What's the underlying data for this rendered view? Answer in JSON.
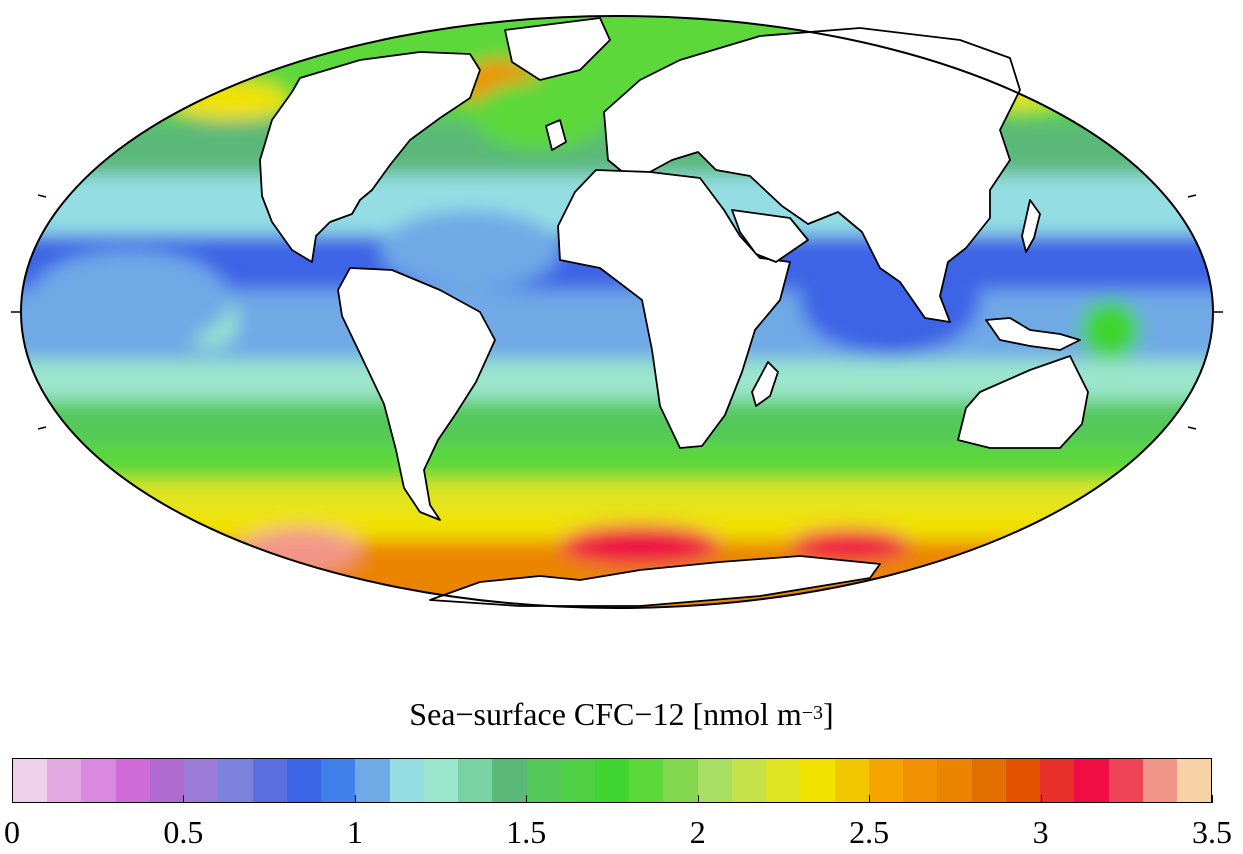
{
  "colorbar": {
    "label_prefix": "Sea−surface CFC−12 [nmol m",
    "label_exponent": "−3",
    "label_suffix": "]",
    "min": 0,
    "max": 3.5,
    "step": 0.1,
    "ticks": [
      "0",
      "0.5",
      "1",
      "1.5",
      "2",
      "2.5",
      "3",
      "3.5"
    ],
    "colors": [
      "#efcfe9",
      "#e2a9e3",
      "#d98ae0",
      "#cf6ad8",
      "#b06ad0",
      "#9b7ad8",
      "#7b82db",
      "#5a6ee0",
      "#3c64e6",
      "#3f80ea",
      "#6fa9e6",
      "#94dee3",
      "#9be6cc",
      "#78d2a2",
      "#5ab878",
      "#55c85a",
      "#4fd045",
      "#3fd42f",
      "#5cd83a",
      "#84d84f",
      "#a8df63",
      "#c6e24a",
      "#e0e423",
      "#f1e200",
      "#f3c700",
      "#f5a400",
      "#f19100",
      "#eb8500",
      "#e27000",
      "#e05200",
      "#e63029",
      "#ef0d44",
      "#ef4358",
      "#f3968a",
      "#f8d1a6"
    ]
  },
  "map": {
    "projection": "Mollweide",
    "field_values": {
      "arctic_atlantic": 2.6,
      "north_atlantic_high_lat": 1.9,
      "north_pacific_high_lat": 1.8,
      "subtropical_gyres": 1.05,
      "equatorial_pacific": 0.85,
      "southern_ocean_40s": 1.9,
      "southern_ocean_50s": 2.4,
      "antarctic_margin": 3.1
    }
  }
}
